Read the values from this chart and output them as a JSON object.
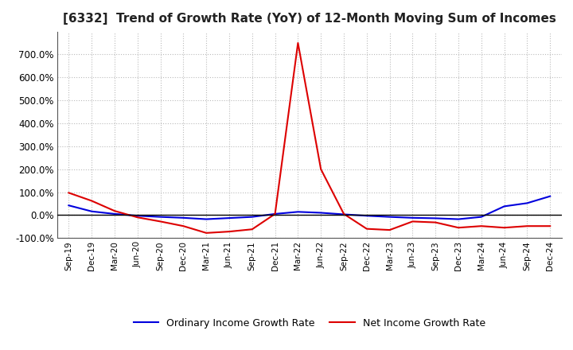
{
  "title": "[6332]  Trend of Growth Rate (YoY) of 12-Month Moving Sum of Incomes",
  "title_fontsize": 11,
  "ylim": [
    -100,
    800
  ],
  "yticks": [
    -100,
    0,
    100,
    200,
    300,
    400,
    500,
    600,
    700
  ],
  "background_color": "#ffffff",
  "grid_color": "#bbbbbb",
  "ordinary_income_color": "#0000dd",
  "net_income_color": "#dd0000",
  "legend_labels": [
    "Ordinary Income Growth Rate",
    "Net Income Growth Rate"
  ],
  "x_labels": [
    "Sep-19",
    "Dec-19",
    "Mar-20",
    "Jun-20",
    "Sep-20",
    "Dec-20",
    "Mar-21",
    "Jun-21",
    "Sep-21",
    "Dec-21",
    "Mar-22",
    "Jun-22",
    "Sep-22",
    "Dec-22",
    "Mar-23",
    "Jun-23",
    "Sep-23",
    "Dec-23",
    "Mar-24",
    "Jun-24",
    "Sep-24",
    "Dec-24"
  ],
  "ordinary_income": [
    42,
    16,
    5,
    -3,
    -8,
    -12,
    -18,
    -13,
    -8,
    5,
    14,
    10,
    3,
    -3,
    -8,
    -12,
    -14,
    -18,
    -8,
    38,
    52,
    82
  ],
  "net_income": [
    97,
    62,
    18,
    -10,
    -28,
    -48,
    -78,
    -72,
    -62,
    5,
    750,
    200,
    5,
    -60,
    -65,
    -28,
    -32,
    -55,
    -48,
    -55,
    -48,
    -48
  ]
}
